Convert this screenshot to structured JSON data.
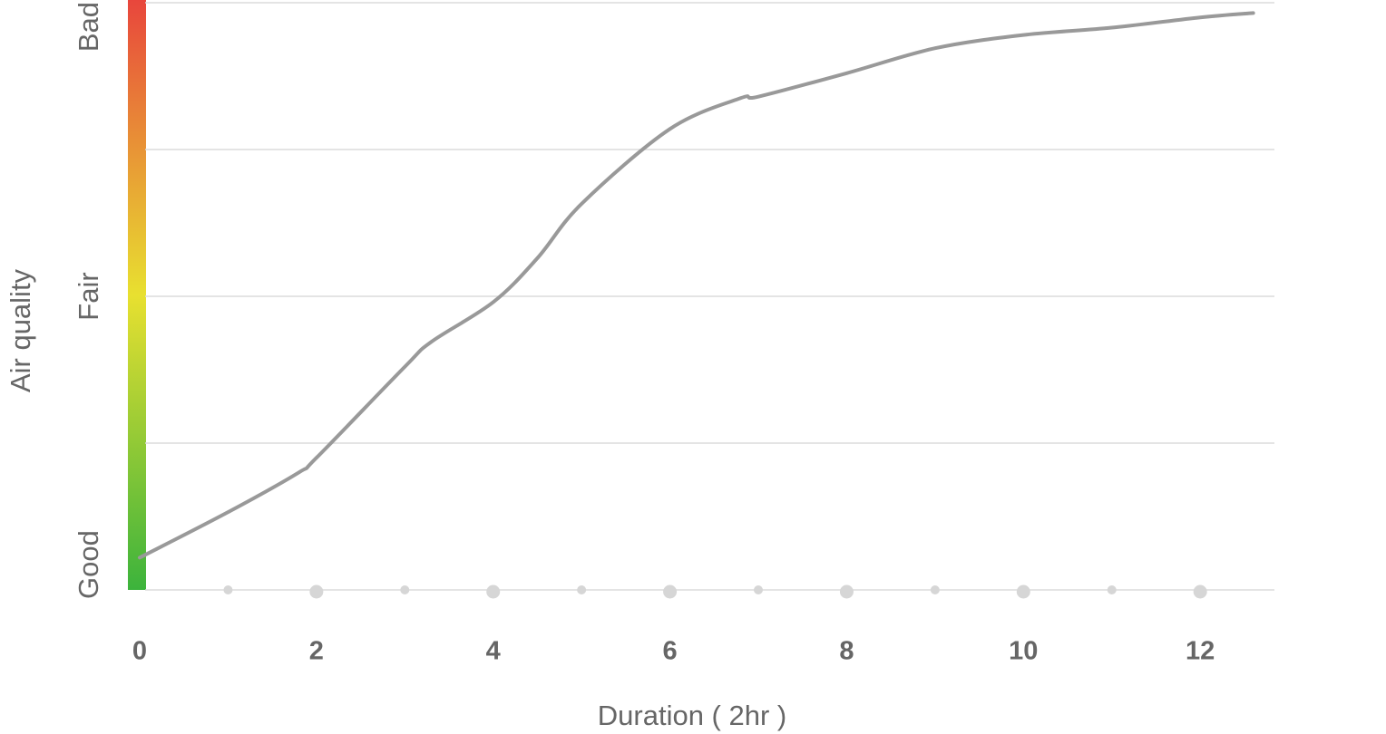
{
  "chart_data": {
    "type": "line",
    "y_axis_title": "Air quality",
    "x_axis_title": "Duration ( 2hr )",
    "x": [
      0,
      1,
      1.8,
      2,
      3,
      3.3,
      4,
      4.5,
      5,
      6,
      6.8,
      7,
      8,
      9,
      10,
      11,
      12,
      12.6
    ],
    "values": [
      0.22,
      0.53,
      0.8,
      0.9,
      1.52,
      1.69,
      1.96,
      2.26,
      2.63,
      3.14,
      3.35,
      3.36,
      3.52,
      3.69,
      3.78,
      3.83,
      3.9,
      3.93
    ],
    "color": "#999999",
    "xlim": [
      0,
      12.84
    ],
    "xticks": [
      0,
      2,
      4,
      6,
      8,
      10,
      12
    ],
    "xminorticks": [
      1,
      3,
      5,
      7,
      9,
      11
    ],
    "ylim": [
      0,
      4
    ],
    "yticks": [
      {
        "value": 0,
        "label": "Good"
      },
      {
        "value": 2,
        "label": "Fair"
      },
      {
        "value": 4,
        "label": "Bad"
      }
    ],
    "ygrid": [
      0,
      1,
      2,
      3,
      4
    ],
    "grid": true
  }
}
